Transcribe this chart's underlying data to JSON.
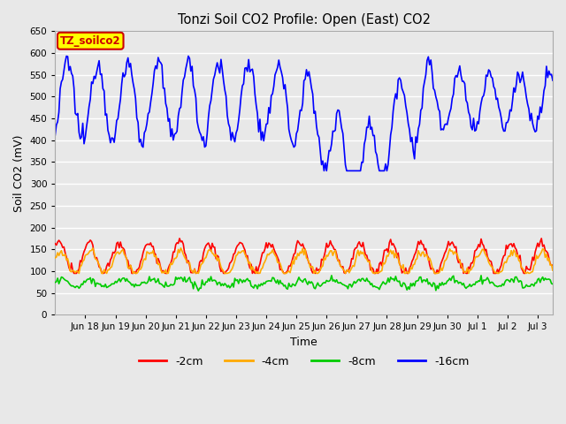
{
  "title": "Tonzi Soil CO2 Profile: Open (East) CO2",
  "xlabel": "Time",
  "ylabel": "Soil CO2 (mV)",
  "ylim": [
    0,
    650
  ],
  "yticks": [
    0,
    50,
    100,
    150,
    200,
    250,
    300,
    350,
    400,
    450,
    500,
    550,
    600,
    650
  ],
  "legend_labels": [
    "-2cm",
    "-4cm",
    "-8cm",
    "-16cm"
  ],
  "legend_colors": [
    "#ff0000",
    "#ffaa00",
    "#00cc00",
    "#0000ff"
  ],
  "label_box_text": "TZ_soilco2",
  "label_box_facecolor": "#ffff00",
  "label_box_edgecolor": "#cc0000",
  "label_box_textcolor": "#cc0000",
  "fig_facecolor": "#e8e8e8",
  "ax_facecolor": "#e8e8e8",
  "grid_color": "#ffffff",
  "x_tick_labels": [
    "Jun 18",
    "Jun 19",
    "Jun 20",
    "Jun 21",
    "Jun 22",
    "Jun 23",
    "Jun 24",
    "Jun 25",
    "Jun 26",
    "Jun 27",
    "Jun 28",
    "Jun 29",
    "Jun 30",
    "Jul 1",
    "Jul 2",
    "Jul 3"
  ]
}
